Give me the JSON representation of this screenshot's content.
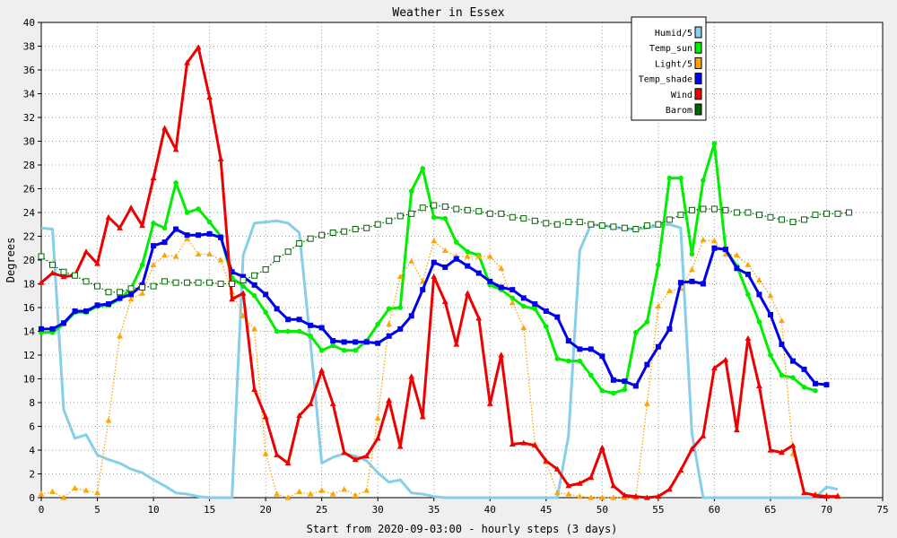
{
  "chart_data": {
    "type": "line",
    "title": "Weather in Essex",
    "xlabel": "Start from 2020-09-03:00 - hourly steps (3 days)",
    "ylabel": "Degrees",
    "xlim": [
      0,
      75
    ],
    "ylim": [
      0,
      40
    ],
    "x_ticks": [
      0,
      5,
      10,
      15,
      20,
      25,
      30,
      35,
      40,
      45,
      50,
      55,
      60,
      65,
      70,
      75
    ],
    "y_ticks": [
      0,
      2,
      4,
      6,
      8,
      10,
      12,
      14,
      16,
      18,
      20,
      22,
      24,
      26,
      28,
      30,
      32,
      34,
      36,
      38,
      40
    ],
    "grid": true,
    "legend_position": "top-right",
    "series": [
      {
        "name": "Humid/5",
        "color": "#87ceeb",
        "marker": "none",
        "line": "solid",
        "values": [
          22.7,
          22.6,
          7.4,
          5.0,
          5.3,
          3.6,
          3.2,
          2.9,
          2.4,
          2.1,
          1.5,
          1.0,
          0.4,
          0.3,
          0.1,
          0.0,
          0.0,
          0.0,
          20.4,
          23.1,
          23.2,
          23.3,
          23.1,
          22.3,
          13.0,
          2.9,
          3.4,
          3.7,
          3.5,
          3.1,
          2.1,
          1.3,
          1.5,
          0.4,
          0.3,
          0.1,
          0.0,
          0.0,
          0.0,
          0.0,
          0.0,
          0.0,
          0.0,
          0.0,
          0.0,
          0.0,
          0.0,
          5.2,
          20.8,
          23.0,
          22.9,
          22.8,
          22.6,
          22.6,
          22.7,
          22.9,
          23.0,
          22.7,
          5.4,
          0.0,
          0.0,
          0.0,
          0.0,
          0.0,
          0.0,
          0.0,
          0.0,
          0.0,
          0.0,
          0.0,
          0.9,
          0.7
        ]
      },
      {
        "name": "Temp_sun",
        "color": "#00ee00",
        "marker": "circle",
        "line": "solid",
        "values": [
          13.9,
          13.9,
          14.6,
          15.6,
          15.6,
          16.1,
          16.2,
          16.7,
          17.6,
          19.6,
          23.1,
          22.7,
          26.5,
          24.0,
          24.3,
          23.2,
          22.0,
          18.5,
          17.8,
          17.0,
          15.6,
          14.0,
          14.0,
          14.0,
          13.6,
          12.4,
          12.8,
          12.4,
          12.4,
          13.2,
          14.6,
          15.9,
          16.0,
          25.8,
          27.7,
          23.6,
          23.5,
          21.5,
          20.7,
          20.4,
          17.9,
          17.5,
          16.8,
          16.1,
          15.9,
          14.4,
          11.7,
          11.5,
          11.5,
          10.3,
          9.0,
          8.8,
          9.1,
          13.9,
          14.8,
          19.6,
          26.9,
          26.9,
          20.5,
          26.7,
          29.8,
          20.9,
          19.5,
          17.1,
          14.8,
          12.0,
          10.3,
          10.1,
          9.3,
          9.0
        ]
      },
      {
        "name": "Light/5",
        "color": "#ffa500",
        "marker": "triangle",
        "line": "dotted",
        "values": [
          0.3,
          0.5,
          0.0,
          0.8,
          0.6,
          0.4,
          6.5,
          13.6,
          16.7,
          17.2,
          19.6,
          20.4,
          20.3,
          21.8,
          20.5,
          20.5,
          20.0,
          17.3,
          15.3,
          14.2,
          3.7,
          0.3,
          0.0,
          0.5,
          0.3,
          0.6,
          0.3,
          0.7,
          0.2,
          0.6,
          6.7,
          14.6,
          18.6,
          19.9,
          18.2,
          21.6,
          20.8,
          20.3,
          20.3,
          20.3,
          20.3,
          19.3,
          16.4,
          14.3,
          4.5,
          3.0,
          0.4,
          0.3,
          0.1,
          0.0,
          0.0,
          0.0,
          0.0,
          0.0,
          7.9,
          16.1,
          17.4,
          17.6,
          19.2,
          21.7,
          21.6,
          20.5,
          20.4,
          19.6,
          18.3,
          17.0,
          14.9,
          3.7,
          0.4,
          0.3,
          0.2,
          0.2
        ]
      },
      {
        "name": "Temp_shade",
        "color": "#0000ee",
        "marker": "square",
        "line": "solid",
        "values": [
          14.2,
          14.2,
          14.7,
          15.7,
          15.7,
          16.2,
          16.3,
          16.8,
          17.1,
          17.9,
          21.2,
          21.5,
          22.6,
          22.1,
          22.1,
          22.2,
          21.9,
          19.0,
          18.6,
          17.9,
          17.1,
          15.9,
          15.0,
          15.0,
          14.5,
          14.3,
          13.2,
          13.1,
          13.1,
          13.1,
          13.0,
          13.6,
          14.2,
          15.3,
          17.5,
          19.8,
          19.4,
          20.1,
          19.5,
          18.9,
          18.2,
          17.7,
          17.5,
          16.8,
          16.3,
          15.7,
          15.2,
          13.2,
          12.5,
          12.5,
          11.9,
          9.9,
          9.8,
          9.4,
          11.2,
          12.7,
          14.2,
          18.1,
          18.2,
          18.0,
          21.0,
          20.9,
          19.3,
          18.8,
          17.1,
          15.4,
          12.9,
          11.5,
          10.8,
          9.6,
          9.5
        ]
      },
      {
        "name": "Wind",
        "color": "#ee0000",
        "marker": "triangle",
        "line": "solid",
        "values": [
          18.1,
          18.9,
          18.6,
          18.7,
          20.7,
          19.7,
          23.6,
          22.7,
          24.4,
          22.9,
          26.9,
          31.1,
          29.3,
          36.6,
          37.9,
          33.7,
          28.5,
          16.7,
          17.2,
          9.1,
          6.8,
          3.6,
          2.9,
          6.9,
          7.9,
          10.7,
          7.9,
          3.8,
          3.2,
          3.5,
          5.0,
          8.2,
          4.3,
          10.2,
          6.8,
          18.6,
          16.5,
          12.9,
          17.2,
          15.1,
          7.9,
          12.0,
          4.5,
          4.6,
          4.4,
          3.1,
          2.4,
          1.0,
          1.2,
          1.7,
          4.2,
          1.0,
          0.2,
          0.1,
          0.0,
          0.1,
          0.7,
          2.3,
          4.1,
          5.2,
          10.9,
          11.6,
          5.7,
          13.4,
          9.4,
          4.0,
          3.8,
          4.4,
          0.4,
          0.2,
          0.1,
          0.1
        ]
      },
      {
        "name": "Barom",
        "color": "#006400",
        "marker": "open-square",
        "line": "dotted",
        "values": [
          20.3,
          19.6,
          19.0,
          18.7,
          18.2,
          17.8,
          17.3,
          17.3,
          17.6,
          17.7,
          17.8,
          18.2,
          18.1,
          18.1,
          18.1,
          18.1,
          18.0,
          18.0,
          18.3,
          18.7,
          19.2,
          20.1,
          20.7,
          21.4,
          21.8,
          22.1,
          22.3,
          22.4,
          22.6,
          22.7,
          23.0,
          23.3,
          23.7,
          23.9,
          24.4,
          24.6,
          24.5,
          24.3,
          24.2,
          24.1,
          23.9,
          23.9,
          23.6,
          23.5,
          23.3,
          23.1,
          23.0,
          23.2,
          23.2,
          23.0,
          22.9,
          22.8,
          22.7,
          22.6,
          22.9,
          23.0,
          23.4,
          23.8,
          24.2,
          24.3,
          24.3,
          24.2,
          24.0,
          24.0,
          23.8,
          23.6,
          23.4,
          23.2,
          23.4,
          23.8,
          23.9,
          23.9,
          24.0
        ]
      }
    ]
  }
}
